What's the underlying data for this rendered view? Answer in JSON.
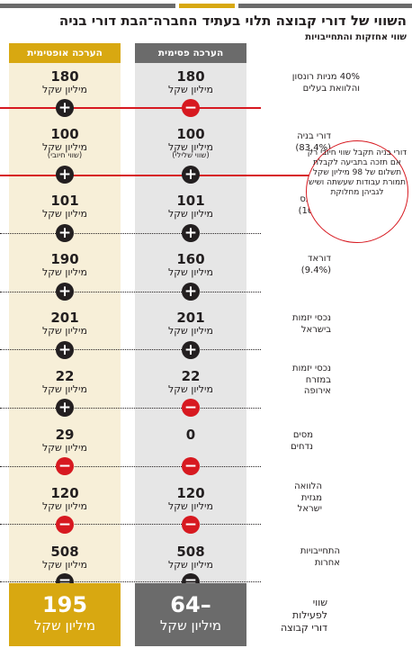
{
  "header": {
    "title": "השווי של דורי קבוצה תלוי בעתיד החברה־הבת דורי בניה",
    "subtitle": "שווי אחזקות והתחייבויות"
  },
  "columns": {
    "pessimistic": {
      "label": "הערכה פסימית"
    },
    "optimistic": {
      "label": "הערכה אופטימית"
    }
  },
  "rows": [
    {
      "label": "40% מניות רונסון והלוואת בעלים",
      "pessimistic": {
        "value": "180",
        "unit": "מיליון שקל"
      },
      "optimistic": {
        "value": "180",
        "unit": "מיליון שקל"
      }
    },
    {
      "label": "דורי בניה (83.4%)",
      "pessimistic": {
        "value": "100",
        "unit": "מיליון שקל",
        "note": "(שווי שלילי)"
      },
      "optimistic": {
        "value": "100",
        "unit": "מיליון שקל",
        "note": "(שווי חיובי)"
      }
    },
    {
      "label": "רום גבס (100%)",
      "pessimistic": {
        "value": "101",
        "unit": "מיליון שקל"
      },
      "optimistic": {
        "value": "101",
        "unit": "מיליון שקל"
      }
    },
    {
      "label": "דוראד (9.4%)",
      "pessimistic": {
        "value": "160",
        "unit": "מיליון שקל"
      },
      "optimistic": {
        "value": "190",
        "unit": "מיליון שקל"
      }
    },
    {
      "label": "נכסי יזמות בישראל",
      "pessimistic": {
        "value": "201",
        "unit": "מיליון שקל"
      },
      "optimistic": {
        "value": "201",
        "unit": "מיליון שקל"
      }
    },
    {
      "label": "נכסי יזמות במזרח אירופה",
      "pessimistic": {
        "value": "22",
        "unit": "מיליון שקל"
      },
      "optimistic": {
        "value": "22",
        "unit": "מיליון שקל"
      }
    },
    {
      "label": "מסים נדחים",
      "pessimistic": {
        "value": "0",
        "unit": ""
      },
      "optimistic": {
        "value": "29",
        "unit": "מיליון שקל"
      }
    },
    {
      "label": "הלוואה מגזית ישראל",
      "pessimistic": {
        "value": "120",
        "unit": "מיליון שקל"
      },
      "optimistic": {
        "value": "120",
        "unit": "מיליון שקל"
      }
    },
    {
      "label": "התחייבויות אחרות",
      "pessimistic": {
        "value": "508",
        "unit": "מיליון שקל"
      },
      "optimistic": {
        "value": "508",
        "unit": "מיליון שקל"
      }
    }
  ],
  "operators": {
    "pessimistic": [
      "minus",
      "plus",
      "plus",
      "plus",
      "plus",
      "minus",
      "minus",
      "minus",
      "equal"
    ],
    "optimistic": [
      "plus",
      "plus",
      "plus",
      "plus",
      "plus",
      "plus",
      "minus",
      "minus",
      "equal"
    ]
  },
  "final": {
    "label": "שווי לפעילות דורי קבוצה",
    "pessimistic": {
      "value": "64–",
      "unit": "מיליון שקל"
    },
    "optimistic": {
      "value": "195",
      "unit": "מיליון שקל"
    }
  },
  "callout": {
    "text": "דורי בניה תקבל שווי חיובי רק אם תזכה בתביעה לקבלת תשלום של 98 מיליון שקל תמורת עבודות שעשתה ושיש לגביהן מחלוקת"
  },
  "colors": {
    "gold": "#d8a811",
    "gold_light": "#f7efd8",
    "gray": "#6b6b6b",
    "gray_light": "#e6e6e6",
    "red": "#d71920",
    "black": "#231f20"
  }
}
